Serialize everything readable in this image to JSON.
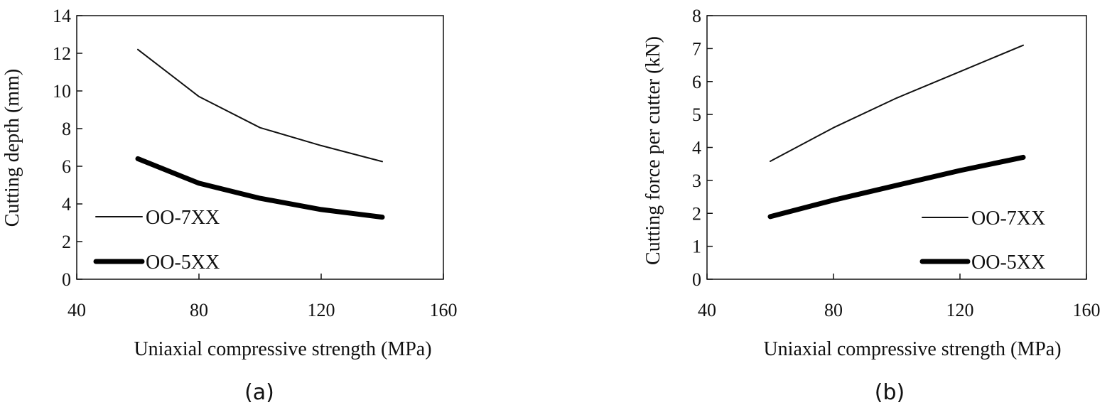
{
  "chart_data": [
    {
      "type": "line",
      "panel_label": "(a)",
      "xlabel": "Uniaxial  compressive  strength  (MPa)",
      "ylabel": "Cutting  depth  (mm)",
      "xlim": [
        40,
        160
      ],
      "ylim": [
        0,
        14
      ],
      "xticks": [
        "40",
        "80",
        "120",
        "160"
      ],
      "yticks": [
        "0",
        "2",
        "4",
        "6",
        "8",
        "10",
        "12",
        "14"
      ],
      "legend_position": "bottom-left",
      "grid": false,
      "x": [
        60,
        80,
        100,
        120,
        140
      ],
      "series": [
        {
          "name": "OO-7XX",
          "values": [
            12.2,
            9.7,
            8.05,
            7.1,
            6.25
          ],
          "line_weight": "thin",
          "color": "#111111"
        },
        {
          "name": "OO-5XX",
          "values": [
            6.4,
            5.1,
            4.3,
            3.7,
            3.3
          ],
          "line_weight": "thick",
          "color": "#000000"
        }
      ]
    },
    {
      "type": "line",
      "panel_label": "(b)",
      "xlabel": "Uniaxial  compressive  strength  (MPa)",
      "ylabel": "Cutting  force  per  cutter  (kN)",
      "xlim": [
        40,
        160
      ],
      "ylim": [
        0,
        8
      ],
      "xticks": [
        "40",
        "80",
        "120",
        "160"
      ],
      "yticks": [
        "0",
        "1",
        "2",
        "3",
        "4",
        "5",
        "6",
        "7",
        "8"
      ],
      "legend_position": "bottom-right",
      "grid": false,
      "x": [
        60,
        80,
        100,
        120,
        140
      ],
      "series": [
        {
          "name": "OO-7XX",
          "values": [
            3.58,
            4.6,
            5.5,
            6.3,
            7.1
          ],
          "line_weight": "thin",
          "color": "#111111"
        },
        {
          "name": "OO-5XX",
          "values": [
            1.9,
            2.4,
            2.85,
            3.3,
            3.7
          ],
          "line_weight": "thick",
          "color": "#000000"
        }
      ]
    }
  ]
}
